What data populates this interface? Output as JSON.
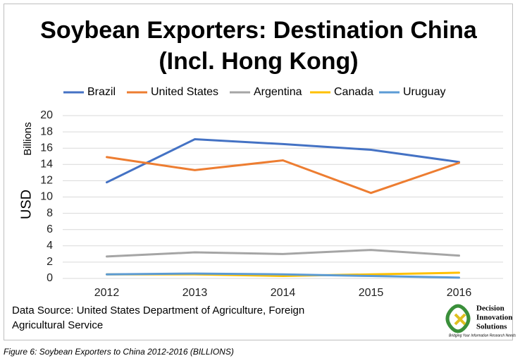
{
  "chart_data": {
    "type": "line",
    "title": [
      "Soybean Exporters: Destination China",
      "(Incl. Hong Kong)"
    ],
    "y_label": "USD",
    "y_units": "Billions",
    "categories": [
      "2012",
      "2013",
      "2014",
      "2015",
      "2016"
    ],
    "series": [
      {
        "name": "Brazil",
        "color": "#4472c4",
        "values": [
          11.8,
          17.1,
          16.5,
          15.8,
          14.3
        ]
      },
      {
        "name": "United States",
        "color": "#ed7d31",
        "values": [
          14.9,
          13.3,
          14.5,
          10.5,
          14.2
        ]
      },
      {
        "name": "Argentina",
        "color": "#a5a5a5",
        "values": [
          2.7,
          3.2,
          3.0,
          3.5,
          2.8
        ]
      },
      {
        "name": "Canada",
        "color": "#ffc000",
        "values": [
          0.5,
          0.5,
          0.3,
          0.5,
          0.7
        ]
      },
      {
        "name": "Uruguay",
        "color": "#5b9bd5",
        "values": [
          0.5,
          0.6,
          0.5,
          0.3,
          0.1
        ]
      }
    ],
    "ylim": [
      0,
      20
    ],
    "yticks": [
      0,
      2,
      4,
      6,
      8,
      10,
      12,
      14,
      16,
      18,
      20
    ],
    "grid": true,
    "legend": "top",
    "source": [
      "Data Source: United States Department of Agriculture, Foreign",
      "Agricultural Service"
    ]
  },
  "logo": {
    "lines": [
      "Decision",
      "Innovation",
      "Solutions"
    ],
    "tagline": "Bridging Your Information Research Needs"
  },
  "caption": "Figure 6: Soybean Exporters to China 2012-2016 (BILLIONS)"
}
